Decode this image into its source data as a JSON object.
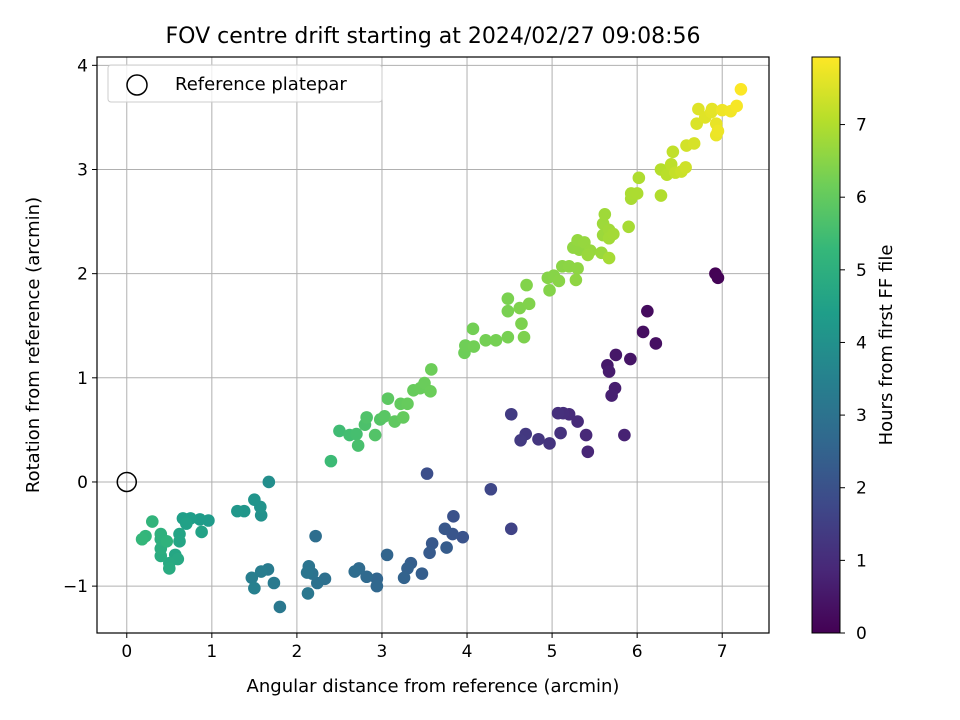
{
  "chart_data": {
    "type": "scatter",
    "title": "FOV centre drift starting at 2024/02/27 09:08:56",
    "xlabel": "Angular distance from reference (arcmin)",
    "ylabel": "Rotation from reference (arcmin)",
    "xlim": [
      -0.35,
      7.55
    ],
    "ylim": [
      -1.45,
      4.08
    ],
    "xticks": [
      0,
      1,
      2,
      3,
      4,
      5,
      6,
      7
    ],
    "yticks": [
      -1,
      0,
      1,
      2,
      3,
      4
    ],
    "grid": true,
    "legend": {
      "placement": "top-left",
      "entries": [
        {
          "label": "Reference platepar",
          "marker": "open-circle"
        }
      ]
    },
    "reference_point": {
      "x": 0.0,
      "y": 0.0
    },
    "colorbar": {
      "label": "Hours from first FF file",
      "colormap": "viridis",
      "range": [
        0,
        7.93
      ],
      "ticks": [
        0,
        1,
        2,
        3,
        4,
        5,
        6,
        7
      ]
    },
    "colormap_stops": [
      "#440154",
      "#482878",
      "#3e4989",
      "#31688e",
      "#26828e",
      "#1f9e89",
      "#35b779",
      "#6ece58",
      "#b5de2b",
      "#fde725"
    ],
    "points": [
      {
        "x": 6.92,
        "y": 2.0,
        "t": 0.02
      },
      {
        "x": 6.95,
        "y": 1.96,
        "t": 0.05
      },
      {
        "x": 6.12,
        "y": 1.64,
        "t": 0.25
      },
      {
        "x": 6.07,
        "y": 1.44,
        "t": 0.3
      },
      {
        "x": 6.22,
        "y": 1.33,
        "t": 0.35
      },
      {
        "x": 5.92,
        "y": 1.18,
        "t": 0.45
      },
      {
        "x": 5.75,
        "y": 1.22,
        "t": 0.5
      },
      {
        "x": 5.65,
        "y": 1.12,
        "t": 0.55
      },
      {
        "x": 5.67,
        "y": 1.06,
        "t": 0.6
      },
      {
        "x": 5.74,
        "y": 0.9,
        "t": 0.65
      },
      {
        "x": 5.7,
        "y": 0.83,
        "t": 0.7
      },
      {
        "x": 5.85,
        "y": 0.45,
        "t": 0.75
      },
      {
        "x": 5.42,
        "y": 0.29,
        "t": 0.85
      },
      {
        "x": 5.4,
        "y": 0.45,
        "t": 0.9
      },
      {
        "x": 5.3,
        "y": 0.58,
        "t": 0.95
      },
      {
        "x": 5.2,
        "y": 0.65,
        "t": 1.0
      },
      {
        "x": 5.13,
        "y": 0.66,
        "t": 1.05
      },
      {
        "x": 5.07,
        "y": 0.66,
        "t": 1.1
      },
      {
        "x": 5.1,
        "y": 0.47,
        "t": 1.15
      },
      {
        "x": 4.97,
        "y": 0.37,
        "t": 1.2
      },
      {
        "x": 4.84,
        "y": 0.41,
        "t": 1.25
      },
      {
        "x": 4.69,
        "y": 0.46,
        "t": 1.3
      },
      {
        "x": 4.63,
        "y": 0.4,
        "t": 1.35
      },
      {
        "x": 4.52,
        "y": 0.65,
        "t": 1.4
      },
      {
        "x": 4.52,
        "y": -0.45,
        "t": 1.6
      },
      {
        "x": 4.28,
        "y": -0.07,
        "t": 1.7
      },
      {
        "x": 3.53,
        "y": 0.08,
        "t": 1.9
      },
      {
        "x": 3.84,
        "y": -0.33,
        "t": 2.0
      },
      {
        "x": 3.95,
        "y": -0.53,
        "t": 2.05
      },
      {
        "x": 3.83,
        "y": -0.5,
        "t": 2.1
      },
      {
        "x": 3.74,
        "y": -0.45,
        "t": 2.15
      },
      {
        "x": 3.59,
        "y": -0.59,
        "t": 2.2
      },
      {
        "x": 3.56,
        "y": -0.68,
        "t": 2.25
      },
      {
        "x": 3.76,
        "y": -0.63,
        "t": 2.3
      },
      {
        "x": 3.47,
        "y": -0.88,
        "t": 2.35
      },
      {
        "x": 3.34,
        "y": -0.78,
        "t": 2.4
      },
      {
        "x": 3.3,
        "y": -0.83,
        "t": 2.45
      },
      {
        "x": 3.26,
        "y": -0.92,
        "t": 2.5
      },
      {
        "x": 3.06,
        "y": -0.7,
        "t": 2.55
      },
      {
        "x": 2.94,
        "y": -0.93,
        "t": 2.6
      },
      {
        "x": 2.94,
        "y": -1.0,
        "t": 2.65
      },
      {
        "x": 2.82,
        "y": -0.91,
        "t": 2.7
      },
      {
        "x": 2.73,
        "y": -0.83,
        "t": 2.75
      },
      {
        "x": 2.68,
        "y": -0.86,
        "t": 2.8
      },
      {
        "x": 2.22,
        "y": -0.52,
        "t": 2.85
      },
      {
        "x": 2.33,
        "y": -0.93,
        "t": 2.9
      },
      {
        "x": 2.24,
        "y": -0.97,
        "t": 2.95
      },
      {
        "x": 2.18,
        "y": -0.88,
        "t": 3.0
      },
      {
        "x": 2.14,
        "y": -0.81,
        "t": 3.05
      },
      {
        "x": 2.12,
        "y": -0.87,
        "t": 3.1
      },
      {
        "x": 2.13,
        "y": -1.07,
        "t": 3.15
      },
      {
        "x": 1.8,
        "y": -1.2,
        "t": 3.2
      },
      {
        "x": 1.73,
        "y": -0.97,
        "t": 3.25
      },
      {
        "x": 1.66,
        "y": -0.84,
        "t": 3.3
      },
      {
        "x": 1.58,
        "y": -0.86,
        "t": 3.35
      },
      {
        "x": 1.47,
        "y": -0.92,
        "t": 3.4
      },
      {
        "x": 1.5,
        "y": -1.02,
        "t": 3.45
      },
      {
        "x": 1.67,
        "y": 0.0,
        "t": 3.9
      },
      {
        "x": 1.58,
        "y": -0.32,
        "t": 4.0
      },
      {
        "x": 1.57,
        "y": -0.24,
        "t": 4.05
      },
      {
        "x": 1.5,
        "y": -0.17,
        "t": 4.1
      },
      {
        "x": 1.38,
        "y": -0.28,
        "t": 4.15
      },
      {
        "x": 1.3,
        "y": -0.28,
        "t": 4.2
      },
      {
        "x": 0.96,
        "y": -0.37,
        "t": 4.3
      },
      {
        "x": 0.86,
        "y": -0.36,
        "t": 4.35
      },
      {
        "x": 0.75,
        "y": -0.35,
        "t": 4.4
      },
      {
        "x": 0.66,
        "y": -0.35,
        "t": 4.45
      },
      {
        "x": 0.7,
        "y": -0.4,
        "t": 4.5
      },
      {
        "x": 0.88,
        "y": -0.48,
        "t": 4.55
      },
      {
        "x": 0.62,
        "y": -0.5,
        "t": 4.6
      },
      {
        "x": 0.62,
        "y": -0.57,
        "t": 4.65
      },
      {
        "x": 0.57,
        "y": -0.7,
        "t": 4.7
      },
      {
        "x": 0.6,
        "y": -0.74,
        "t": 4.75
      },
      {
        "x": 0.5,
        "y": -0.78,
        "t": 4.8
      },
      {
        "x": 0.5,
        "y": -0.83,
        "t": 4.85
      },
      {
        "x": 0.4,
        "y": -0.71,
        "t": 4.9
      },
      {
        "x": 0.4,
        "y": -0.64,
        "t": 4.95
      },
      {
        "x": 0.4,
        "y": -0.55,
        "t": 5.0
      },
      {
        "x": 0.4,
        "y": -0.5,
        "t": 5.05
      },
      {
        "x": 0.47,
        "y": -0.57,
        "t": 5.1
      },
      {
        "x": 0.3,
        "y": -0.38,
        "t": 5.15
      },
      {
        "x": 0.22,
        "y": -0.52,
        "t": 5.2
      },
      {
        "x": 0.18,
        "y": -0.55,
        "t": 5.25
      },
      {
        "x": 2.4,
        "y": 0.2,
        "t": 5.4
      },
      {
        "x": 2.5,
        "y": 0.49,
        "t": 5.45
      },
      {
        "x": 2.62,
        "y": 0.45,
        "t": 5.5
      },
      {
        "x": 2.7,
        "y": 0.46,
        "t": 5.55
      },
      {
        "x": 2.72,
        "y": 0.35,
        "t": 5.6
      },
      {
        "x": 2.8,
        "y": 0.55,
        "t": 5.65
      },
      {
        "x": 2.82,
        "y": 0.62,
        "t": 5.7
      },
      {
        "x": 2.92,
        "y": 0.45,
        "t": 5.75
      },
      {
        "x": 2.98,
        "y": 0.6,
        "t": 5.8
      },
      {
        "x": 3.03,
        "y": 0.63,
        "t": 5.85
      },
      {
        "x": 3.07,
        "y": 0.8,
        "t": 5.9
      },
      {
        "x": 3.15,
        "y": 0.58,
        "t": 5.95
      },
      {
        "x": 3.22,
        "y": 0.75,
        "t": 6.0
      },
      {
        "x": 3.25,
        "y": 0.62,
        "t": 6.02
      },
      {
        "x": 3.3,
        "y": 0.75,
        "t": 6.04
      },
      {
        "x": 3.37,
        "y": 0.88,
        "t": 6.06
      },
      {
        "x": 3.45,
        "y": 0.9,
        "t": 6.08
      },
      {
        "x": 3.5,
        "y": 0.95,
        "t": 6.1
      },
      {
        "x": 3.57,
        "y": 0.87,
        "t": 6.12
      },
      {
        "x": 3.58,
        "y": 1.08,
        "t": 6.14
      },
      {
        "x": 3.97,
        "y": 1.24,
        "t": 6.16
      },
      {
        "x": 3.98,
        "y": 1.31,
        "t": 6.18
      },
      {
        "x": 4.08,
        "y": 1.3,
        "t": 6.2
      },
      {
        "x": 4.07,
        "y": 1.47,
        "t": 6.22
      },
      {
        "x": 4.22,
        "y": 1.36,
        "t": 6.24
      },
      {
        "x": 4.34,
        "y": 1.36,
        "t": 6.26
      },
      {
        "x": 4.48,
        "y": 1.39,
        "t": 6.28
      },
      {
        "x": 4.48,
        "y": 1.64,
        "t": 6.3
      },
      {
        "x": 4.48,
        "y": 1.76,
        "t": 6.32
      },
      {
        "x": 4.64,
        "y": 1.52,
        "t": 6.34
      },
      {
        "x": 4.67,
        "y": 1.39,
        "t": 6.36
      },
      {
        "x": 4.62,
        "y": 1.67,
        "t": 6.38
      },
      {
        "x": 4.73,
        "y": 1.71,
        "t": 6.4
      },
      {
        "x": 4.7,
        "y": 1.89,
        "t": 6.42
      },
      {
        "x": 4.97,
        "y": 1.84,
        "t": 6.44
      },
      {
        "x": 4.95,
        "y": 1.96,
        "t": 6.46
      },
      {
        "x": 5.02,
        "y": 1.98,
        "t": 6.48
      },
      {
        "x": 5.08,
        "y": 1.93,
        "t": 6.5
      },
      {
        "x": 5.12,
        "y": 2.07,
        "t": 6.52
      },
      {
        "x": 5.2,
        "y": 2.07,
        "t": 6.54
      },
      {
        "x": 5.3,
        "y": 2.05,
        "t": 6.56
      },
      {
        "x": 5.28,
        "y": 1.94,
        "t": 6.58
      },
      {
        "x": 5.25,
        "y": 2.25,
        "t": 6.6
      },
      {
        "x": 5.32,
        "y": 2.23,
        "t": 6.62
      },
      {
        "x": 5.3,
        "y": 2.32,
        "t": 6.64
      },
      {
        "x": 5.38,
        "y": 2.3,
        "t": 6.66
      },
      {
        "x": 5.45,
        "y": 2.22,
        "t": 6.68
      },
      {
        "x": 5.42,
        "y": 2.18,
        "t": 6.7
      },
      {
        "x": 5.58,
        "y": 2.2,
        "t": 6.72
      },
      {
        "x": 5.6,
        "y": 2.37,
        "t": 6.74
      },
      {
        "x": 5.6,
        "y": 2.48,
        "t": 6.76
      },
      {
        "x": 5.62,
        "y": 2.57,
        "t": 6.78
      },
      {
        "x": 5.67,
        "y": 2.42,
        "t": 6.8
      },
      {
        "x": 5.67,
        "y": 2.34,
        "t": 6.82
      },
      {
        "x": 5.72,
        "y": 2.38,
        "t": 6.84
      },
      {
        "x": 5.67,
        "y": 2.15,
        "t": 6.86
      },
      {
        "x": 5.9,
        "y": 2.45,
        "t": 6.88
      },
      {
        "x": 5.93,
        "y": 2.72,
        "t": 6.9
      },
      {
        "x": 5.93,
        "y": 2.77,
        "t": 6.92
      },
      {
        "x": 6.0,
        "y": 2.77,
        "t": 6.94
      },
      {
        "x": 6.02,
        "y": 2.92,
        "t": 6.96
      },
      {
        "x": 6.28,
        "y": 2.75,
        "t": 7.0
      },
      {
        "x": 6.28,
        "y": 3.0,
        "t": 7.05
      },
      {
        "x": 6.35,
        "y": 2.95,
        "t": 7.1
      },
      {
        "x": 6.4,
        "y": 3.05,
        "t": 7.15
      },
      {
        "x": 6.42,
        "y": 3.17,
        "t": 7.2
      },
      {
        "x": 6.45,
        "y": 2.97,
        "t": 7.25
      },
      {
        "x": 6.52,
        "y": 2.98,
        "t": 7.3
      },
      {
        "x": 6.57,
        "y": 3.02,
        "t": 7.35
      },
      {
        "x": 6.58,
        "y": 3.23,
        "t": 7.4
      },
      {
        "x": 6.67,
        "y": 3.25,
        "t": 7.45
      },
      {
        "x": 6.7,
        "y": 3.44,
        "t": 7.5
      },
      {
        "x": 6.72,
        "y": 3.58,
        "t": 7.55
      },
      {
        "x": 6.8,
        "y": 3.5,
        "t": 7.58
      },
      {
        "x": 6.87,
        "y": 3.55,
        "t": 7.61
      },
      {
        "x": 6.88,
        "y": 3.58,
        "t": 7.64
      },
      {
        "x": 6.93,
        "y": 3.44,
        "t": 7.67
      },
      {
        "x": 6.93,
        "y": 3.33,
        "t": 7.7
      },
      {
        "x": 6.95,
        "y": 3.37,
        "t": 7.73
      },
      {
        "x": 7.0,
        "y": 3.57,
        "t": 7.76
      },
      {
        "x": 7.1,
        "y": 3.56,
        "t": 7.8
      },
      {
        "x": 7.17,
        "y": 3.61,
        "t": 7.85
      },
      {
        "x": 7.22,
        "y": 3.77,
        "t": 7.9
      }
    ]
  }
}
